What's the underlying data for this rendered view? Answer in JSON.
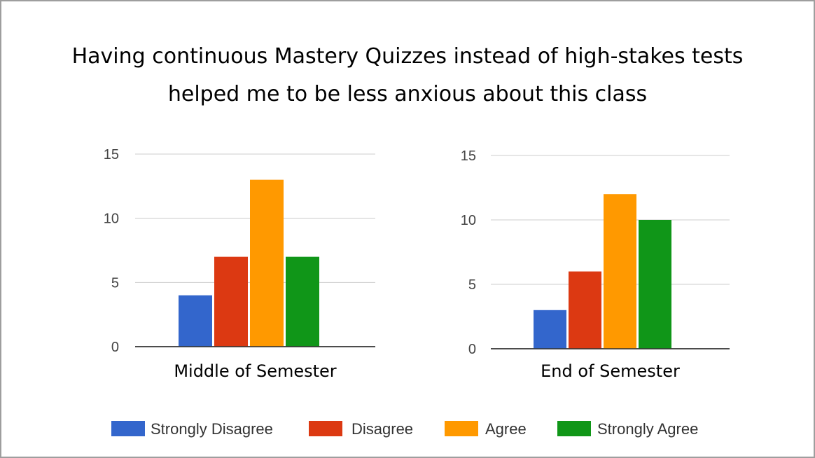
{
  "title_line1": "Having continuous Mastery Quizzes instead of high-stakes tests",
  "title_line2": "helped me to be less anxious about this class",
  "legend": [
    {
      "label": "Strongly Disagree",
      "color": "#3366cc"
    },
    {
      "label": "Disagree",
      "color": "#dc3912"
    },
    {
      "label": "Agree",
      "color": "#ff9900"
    },
    {
      "label": "Strongly Agree",
      "color": "#109618"
    }
  ],
  "chart_data": [
    {
      "type": "bar",
      "xlabel": "Middle of Semester",
      "categories": [
        "Strongly Disagree",
        "Disagree",
        "Agree",
        "Strongly Agree"
      ],
      "values": [
        4,
        7,
        13,
        7
      ],
      "colors": [
        "#3366cc",
        "#dc3912",
        "#ff9900",
        "#109618"
      ],
      "yticks": [
        0,
        5,
        10,
        15
      ],
      "ylim": [
        0,
        15
      ],
      "grid": true,
      "legend_position": "bottom"
    },
    {
      "type": "bar",
      "xlabel": "End of Semester",
      "categories": [
        "Strongly Disagree",
        "Disagree",
        "Agree",
        "Strongly Agree"
      ],
      "values": [
        3,
        6,
        12,
        10
      ],
      "colors": [
        "#3366cc",
        "#dc3912",
        "#ff9900",
        "#109618"
      ],
      "yticks": [
        0,
        5,
        10,
        15
      ],
      "ylim": [
        0,
        15
      ],
      "grid": true,
      "legend_position": "bottom"
    }
  ]
}
